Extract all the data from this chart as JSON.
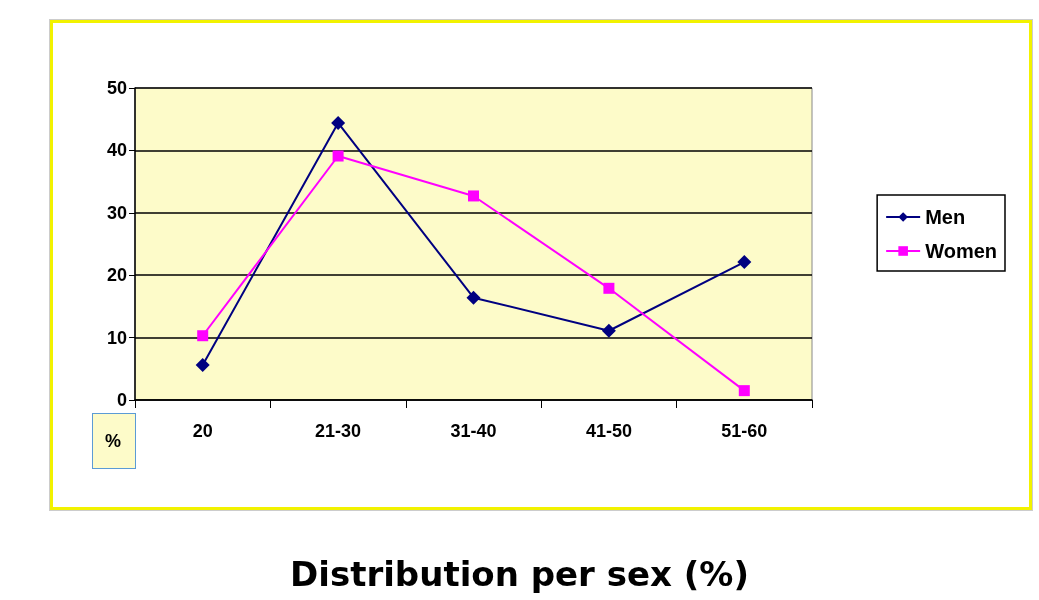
{
  "chart_data": {
    "type": "line",
    "title": "Distribution per sex (%)",
    "ylabel": "%",
    "categories": [
      "20",
      "21-30",
      "31-40",
      "41-50",
      "51-60"
    ],
    "series": [
      {
        "name": "Men",
        "color": "#000080",
        "marker": "diamond",
        "values": [
          5.6,
          44.4,
          16.4,
          11.1,
          22.1
        ]
      },
      {
        "name": "Women",
        "color": "#ff00ff",
        "marker": "square",
        "values": [
          10.3,
          39.1,
          32.7,
          17.9,
          1.5
        ]
      }
    ],
    "ylim": [
      0,
      50
    ],
    "yticks": [
      0,
      10,
      20,
      30,
      40,
      50
    ],
    "grid": "y",
    "legend": "right",
    "line_style": "solid"
  }
}
